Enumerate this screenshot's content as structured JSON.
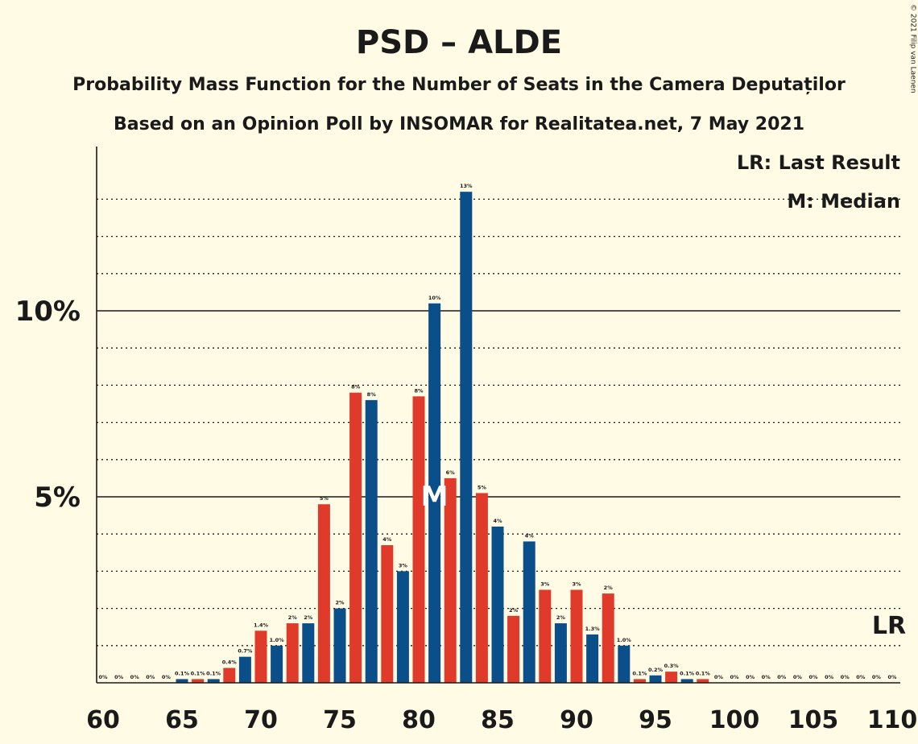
{
  "title": "PSD – ALDE",
  "subtitle1": "Probability Mass Function for the Number of Seats in the Camera Deputaților",
  "subtitle2": "Based on an Opinion Poll by INSOMAR for Realitatea.net, 7 May 2021",
  "copyright": "© 2021 Filip van Laenen",
  "legend": {
    "lr": "LR: Last Result",
    "m": "M: Median"
  },
  "markers": {
    "median_label": "M",
    "median_seat": 81,
    "last_result_label": "LR",
    "last_result_seat": 110
  },
  "colors": {
    "blue": "#0b4f8a",
    "red": "#e03a2b",
    "background": "#fffbe5",
    "text": "#1a1a1a"
  },
  "chart_data": {
    "type": "bar",
    "x": [
      60,
      61,
      62,
      63,
      64,
      65,
      66,
      67,
      68,
      69,
      70,
      71,
      72,
      73,
      74,
      75,
      76,
      77,
      78,
      79,
      80,
      81,
      82,
      83,
      84,
      85,
      86,
      87,
      88,
      89,
      90,
      91,
      92,
      93,
      94,
      95,
      96,
      97,
      98,
      99,
      100,
      101,
      102,
      103,
      104,
      105,
      106,
      107,
      108,
      109,
      110
    ],
    "values": [
      0,
      0,
      0,
      0,
      0,
      0.1,
      0.1,
      0.1,
      0.4,
      0.7,
      1.4,
      1.0,
      1.6,
      1.6,
      4.8,
      2.0,
      7.8,
      7.6,
      3.7,
      3.0,
      7.7,
      10.2,
      5.5,
      13.2,
      5.1,
      4.2,
      1.8,
      3.8,
      2.5,
      1.6,
      2.5,
      1.3,
      2.4,
      1.0,
      0.1,
      0.2,
      0.3,
      0.1,
      0.1,
      0,
      0,
      0,
      0,
      0,
      0,
      0,
      0,
      0,
      0,
      0,
      0
    ],
    "labels": [
      "0%",
      "0%",
      "0%",
      "0%",
      "0%",
      "0.1%",
      "0.1%",
      "0.1%",
      "0.4%",
      "0.7%",
      "1.4%",
      "1.0%",
      "2%",
      "2%",
      "5%",
      "2%",
      "8%",
      "8%",
      "4%",
      "3%",
      "8%",
      "10%",
      "6%",
      "13%",
      "5%",
      "4%",
      "2%",
      "4%",
      "3%",
      "2%",
      "3%",
      "1.3%",
      "2%",
      "1.0%",
      "0.1%",
      "0.2%",
      "0.3%",
      "0.1%",
      "0.1%",
      "0%",
      "0%",
      "0%",
      "0%",
      "0%",
      "0%",
      "0%",
      "0%",
      "0%",
      "0%",
      "0%",
      "0%"
    ],
    "xticks": [
      60,
      65,
      70,
      75,
      80,
      85,
      90,
      95,
      100,
      105,
      110
    ],
    "xtick_labels": [
      "60",
      "65",
      "70",
      "75",
      "80",
      "85",
      "90",
      "95",
      "100",
      "105",
      "110"
    ],
    "yticks": [
      5,
      10
    ],
    "ytick_labels": [
      "5%",
      "10%"
    ],
    "ylim": [
      0,
      14
    ],
    "xlim": [
      60,
      110
    ]
  }
}
